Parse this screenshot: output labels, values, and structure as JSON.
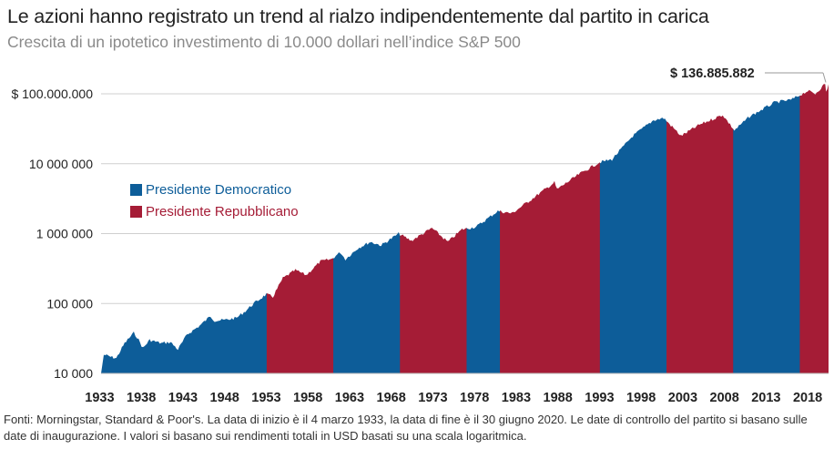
{
  "title": "Le azioni hanno registrato un trend al rialzo indipendentemente dal partito in carica",
  "subtitle": "Crescita di un ipotetico investimento di 10.000 dollari nell’indice S&P 500",
  "footnote": "Fonti: Morningstar, Standard & Poor's. La data di inizio è il 4 marzo 1933, la data di fine è il 30 giugno 2020. Le date di controllo del partito si basano sulle date di inaugurazione. I valori si basano sui rendimenti totali in USD basati su una scala logaritmica.",
  "colors": {
    "democratic": "#0d5d99",
    "republican": "#a51c36"
  },
  "chart_data": {
    "type": "area",
    "y_scale": "log",
    "ylim": [
      10000,
      150000000
    ],
    "xlim": [
      1933.17,
      2020.5
    ],
    "y_ticks": [
      {
        "value": 10000,
        "label": "10 000"
      },
      {
        "value": 100000,
        "label": "100 000"
      },
      {
        "value": 1000000,
        "label": "1 000 000"
      },
      {
        "value": 10000000,
        "label": "10 000 000"
      },
      {
        "value": 100000000,
        "label": "$ 100.000.000"
      }
    ],
    "x_ticks": [
      "1933",
      "1938",
      "1943",
      "1948",
      "1953",
      "1958",
      "1963",
      "1968",
      "1973",
      "1978",
      "1983",
      "1988",
      "1993",
      "1998",
      "2003",
      "2008",
      "2013",
      "2018"
    ],
    "end_annotation": "$ 136.885.882",
    "end_value": 136885882,
    "legend": [
      {
        "party": "democratic",
        "label": "Presidente Democratico"
      },
      {
        "party": "republican",
        "label": "Presidente Repubblicano"
      }
    ],
    "terms": [
      {
        "start": 1933.17,
        "end": 1953.05,
        "party": "democratic"
      },
      {
        "start": 1953.05,
        "end": 1961.05,
        "party": "republican"
      },
      {
        "start": 1961.05,
        "end": 1969.05,
        "party": "democratic"
      },
      {
        "start": 1969.05,
        "end": 1977.05,
        "party": "republican"
      },
      {
        "start": 1977.05,
        "end": 1981.05,
        "party": "democratic"
      },
      {
        "start": 1981.05,
        "end": 1993.05,
        "party": "republican"
      },
      {
        "start": 1993.05,
        "end": 2001.05,
        "party": "democratic"
      },
      {
        "start": 2001.05,
        "end": 2009.05,
        "party": "republican"
      },
      {
        "start": 2009.05,
        "end": 2017.05,
        "party": "democratic"
      },
      {
        "start": 2017.05,
        "end": 2020.5,
        "party": "republican"
      }
    ],
    "series": [
      {
        "x": 1933.17,
        "y": 10000
      },
      {
        "x": 1933.5,
        "y": 18500
      },
      {
        "x": 1934.5,
        "y": 17000
      },
      {
        "x": 1935.0,
        "y": 16500
      },
      {
        "x": 1936.0,
        "y": 27000
      },
      {
        "x": 1937.1,
        "y": 38000
      },
      {
        "x": 1937.5,
        "y": 33000
      },
      {
        "x": 1938.2,
        "y": 23000
      },
      {
        "x": 1939.0,
        "y": 30000
      },
      {
        "x": 1940.4,
        "y": 27000
      },
      {
        "x": 1941.5,
        "y": 28000
      },
      {
        "x": 1942.4,
        "y": 22000
      },
      {
        "x": 1943.5,
        "y": 36000
      },
      {
        "x": 1945.0,
        "y": 48000
      },
      {
        "x": 1946.3,
        "y": 66000
      },
      {
        "x": 1946.8,
        "y": 57000
      },
      {
        "x": 1948.0,
        "y": 58000
      },
      {
        "x": 1949.4,
        "y": 62000
      },
      {
        "x": 1950.5,
        "y": 78000
      },
      {
        "x": 1951.5,
        "y": 100000
      },
      {
        "x": 1953.0,
        "y": 135000
      },
      {
        "x": 1953.8,
        "y": 125000
      },
      {
        "x": 1955.0,
        "y": 230000
      },
      {
        "x": 1956.5,
        "y": 300000
      },
      {
        "x": 1957.8,
        "y": 255000
      },
      {
        "x": 1959.5,
        "y": 400000
      },
      {
        "x": 1960.8,
        "y": 430000
      },
      {
        "x": 1961.9,
        "y": 540000
      },
      {
        "x": 1962.5,
        "y": 430000
      },
      {
        "x": 1964.0,
        "y": 620000
      },
      {
        "x": 1965.5,
        "y": 760000
      },
      {
        "x": 1966.8,
        "y": 680000
      },
      {
        "x": 1968.9,
        "y": 1000000
      },
      {
        "x": 1970.4,
        "y": 790000
      },
      {
        "x": 1972.9,
        "y": 1200000
      },
      {
        "x": 1974.8,
        "y": 760000
      },
      {
        "x": 1976.5,
        "y": 1150000
      },
      {
        "x": 1978.2,
        "y": 1250000
      },
      {
        "x": 1980.8,
        "y": 2100000
      },
      {
        "x": 1982.5,
        "y": 1950000
      },
      {
        "x": 1985.0,
        "y": 3200000
      },
      {
        "x": 1987.6,
        "y": 5400000
      },
      {
        "x": 1987.9,
        "y": 4300000
      },
      {
        "x": 1990.5,
        "y": 7000000
      },
      {
        "x": 1993.0,
        "y": 10500000
      },
      {
        "x": 1994.5,
        "y": 11500000
      },
      {
        "x": 1997.0,
        "y": 25000000
      },
      {
        "x": 1999.5,
        "y": 42000000
      },
      {
        "x": 2000.7,
        "y": 45000000
      },
      {
        "x": 2002.8,
        "y": 25000000
      },
      {
        "x": 2005.0,
        "y": 36000000
      },
      {
        "x": 2007.8,
        "y": 50000000
      },
      {
        "x": 2009.2,
        "y": 30000000
      },
      {
        "x": 2011.0,
        "y": 47000000
      },
      {
        "x": 2014.0,
        "y": 75000000
      },
      {
        "x": 2016.0,
        "y": 82000000
      },
      {
        "x": 2018.0,
        "y": 110000000
      },
      {
        "x": 2018.9,
        "y": 100000000
      },
      {
        "x": 2020.1,
        "y": 140000000
      },
      {
        "x": 2020.2,
        "y": 105000000
      },
      {
        "x": 2020.5,
        "y": 136885882
      }
    ]
  }
}
